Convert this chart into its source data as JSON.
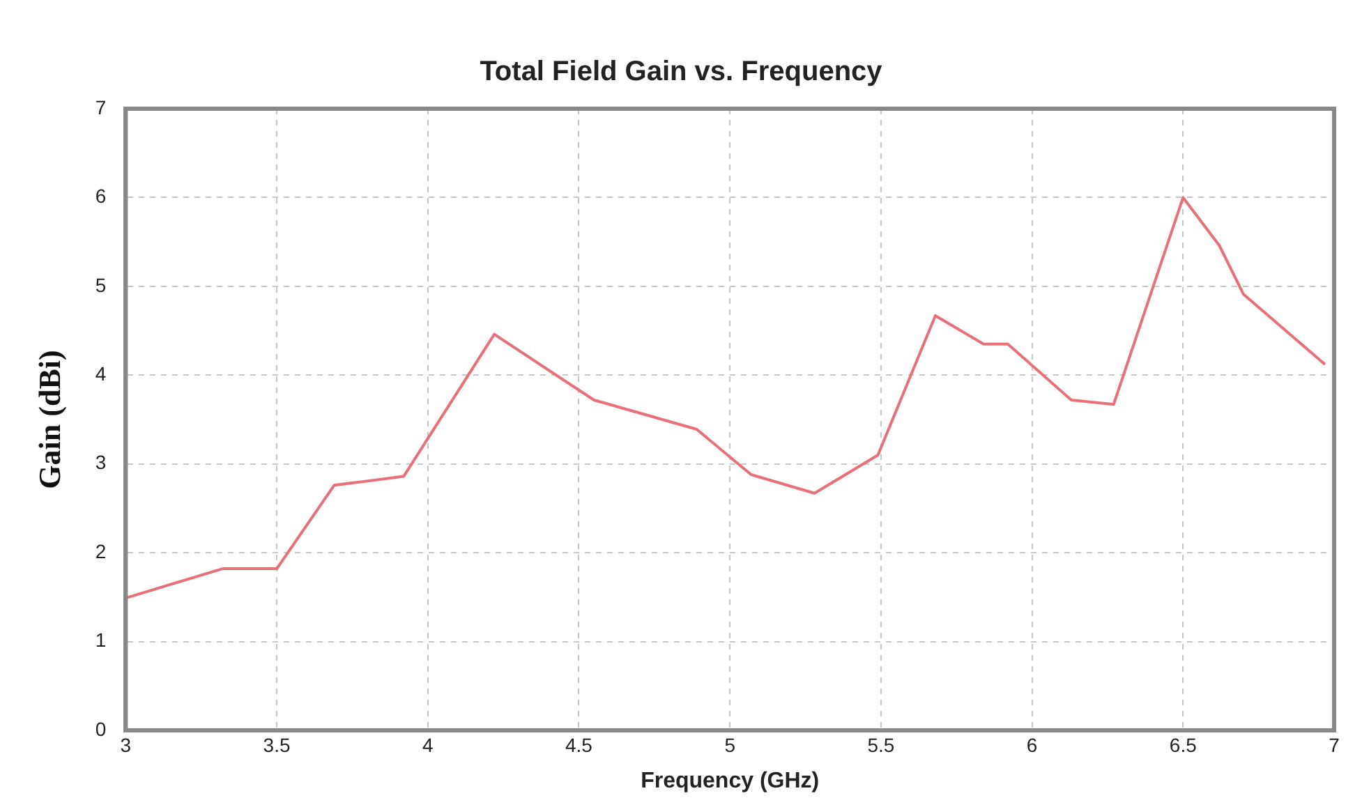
{
  "chart_data": {
    "type": "line",
    "title": "Total Field Gain vs. Frequency",
    "xlabel": "Frequency (GHz)",
    "ylabel": "Gain (dBi)",
    "series": [
      {
        "color": "#e8707a",
        "x": [
          3,
          3.32,
          3.5,
          3.69,
          3.92,
          4.22,
          4.55,
          4.89,
          5.07,
          5.28,
          5.49,
          5.68,
          5.84,
          5.92,
          6.13,
          6.27,
          6.5,
          6.62,
          6.7,
          6.97
        ],
        "values": [
          1.49,
          1.82,
          1.82,
          2.76,
          2.86,
          4.46,
          3.72,
          3.39,
          2.88,
          2.67,
          3.1,
          4.67,
          4.35,
          4.35,
          3.72,
          3.67,
          6.0,
          5.46,
          4.91,
          4.12
        ]
      }
    ],
    "xlim": [
      3,
      7
    ],
    "xticks": [
      3,
      3.5,
      4,
      4.5,
      5,
      5.5,
      6,
      6.5,
      7
    ],
    "ylim": [
      0,
      7
    ],
    "yticks": [
      0,
      1,
      2,
      3,
      4,
      5,
      6,
      7
    ],
    "grid": true,
    "legend": false,
    "marker": "none",
    "line_style": "solid"
  }
}
